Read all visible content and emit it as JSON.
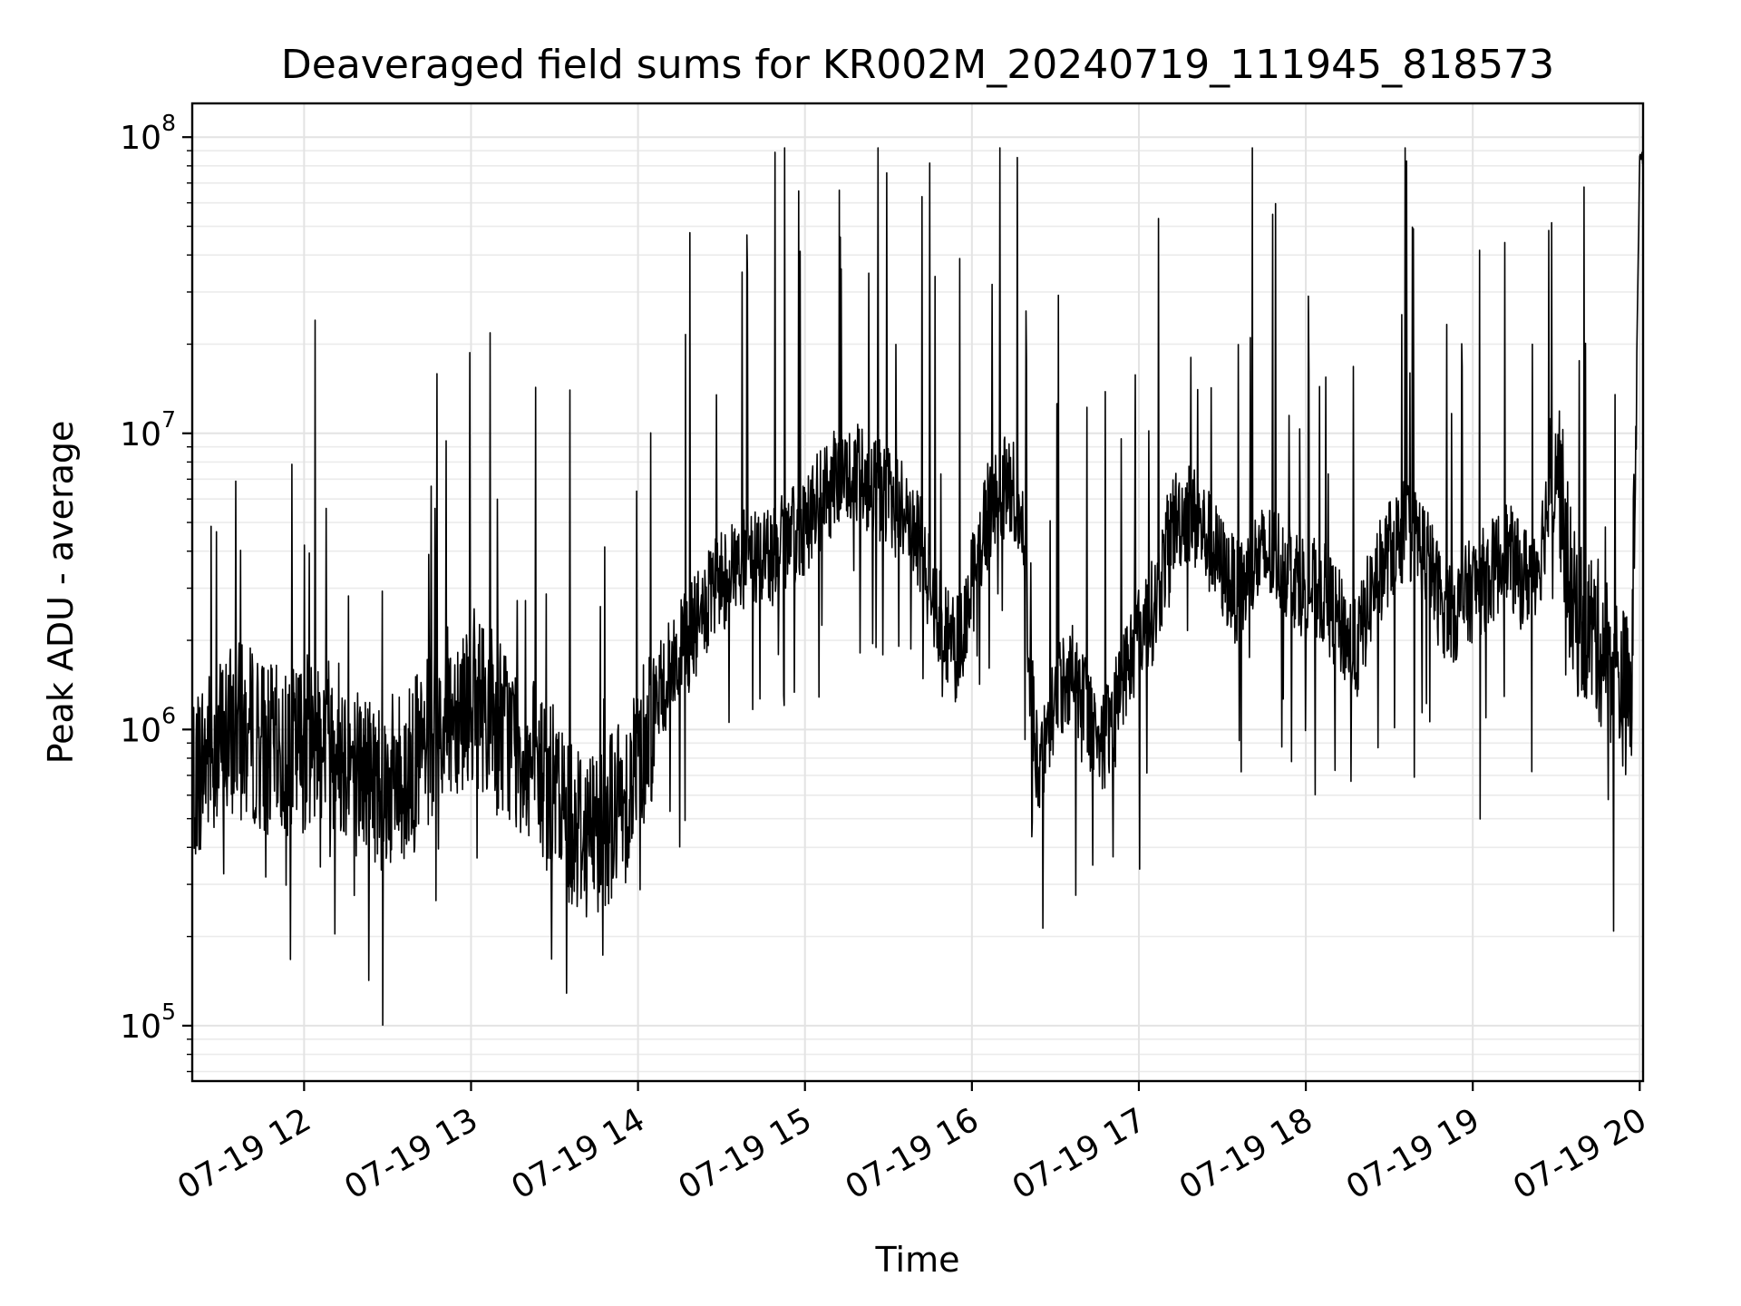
{
  "chart_data": {
    "type": "line",
    "title": "Deaveraged field sums for KR002M_20240719_111945_818573",
    "xlabel": "Time",
    "ylabel": "Peak ADU - average",
    "yscale": "log",
    "ylim": [
      65000,
      130000000
    ],
    "xlim_hours": [
      11.33,
      20.02
    ],
    "grid": true,
    "line_color": "#000000",
    "x_ticks": [
      {
        "hour": 12,
        "label": "07-19 12"
      },
      {
        "hour": 13,
        "label": "07-19 13"
      },
      {
        "hour": 14,
        "label": "07-19 14"
      },
      {
        "hour": 15,
        "label": "07-19 15"
      },
      {
        "hour": 16,
        "label": "07-19 16"
      },
      {
        "hour": 17,
        "label": "07-19 17"
      },
      {
        "hour": 18,
        "label": "07-19 18"
      },
      {
        "hour": 19,
        "label": "07-19 19"
      },
      {
        "hour": 20,
        "label": "07-19 20"
      }
    ],
    "y_ticks": [
      {
        "value": 100000,
        "base": "10",
        "exp": "5"
      },
      {
        "value": 1000000,
        "base": "10",
        "exp": "6"
      },
      {
        "value": 10000000,
        "base": "10",
        "exp": "7"
      },
      {
        "value": 100000000,
        "base": "10",
        "exp": "8"
      }
    ],
    "series": [
      {
        "name": "Peak ADU - average",
        "x_hours": [
          11.33,
          11.4,
          11.5,
          11.6,
          11.7,
          11.8,
          11.9,
          12.0,
          12.1,
          12.2,
          12.3,
          12.4,
          12.5,
          12.6,
          12.7,
          12.8,
          12.9,
          13.0,
          13.1,
          13.2,
          13.3,
          13.4,
          13.5,
          13.6,
          13.7,
          13.8,
          13.9,
          14.0,
          14.1,
          14.2,
          14.3,
          14.4,
          14.5,
          14.6,
          14.7,
          14.8,
          14.9,
          15.0,
          15.1,
          15.2,
          15.3,
          15.4,
          15.5,
          15.6,
          15.7,
          15.8,
          15.9,
          16.0,
          16.1,
          16.2,
          16.3,
          16.35,
          16.4,
          16.45,
          16.5,
          16.6,
          16.7,
          16.8,
          16.9,
          17.0,
          17.1,
          17.2,
          17.3,
          17.4,
          17.5,
          17.6,
          17.7,
          17.8,
          17.9,
          18.0,
          18.1,
          18.2,
          18.3,
          18.4,
          18.5,
          18.6,
          18.7,
          18.8,
          18.9,
          19.0,
          19.1,
          19.2,
          19.3,
          19.4,
          19.5,
          19.6,
          19.7,
          19.8,
          19.9,
          19.95,
          20.0
        ],
        "y": [
          700000,
          800000,
          900000,
          1000000,
          950000,
          850000,
          800000,
          900000,
          1000000,
          900000,
          750000,
          700000,
          650000,
          700000,
          800000,
          1000000,
          1200000,
          1300000,
          1200000,
          1000000,
          850000,
          700000,
          600000,
          500000,
          450000,
          500000,
          550000,
          800000,
          1200000,
          1600000,
          2000000,
          2500000,
          3200000,
          3600000,
          3800000,
          3900000,
          4200000,
          5000000,
          6000000,
          7000000,
          7200000,
          6800000,
          6000000,
          5500000,
          4000000,
          2500000,
          1800000,
          3000000,
          5500000,
          6500000,
          6000000,
          1500000,
          650000,
          900000,
          1300000,
          1600000,
          1100000,
          900000,
          1500000,
          2100000,
          2600000,
          5000000,
          5500000,
          4500000,
          3500000,
          2800000,
          3700000,
          3900000,
          3500000,
          3000000,
          2900000,
          2300000,
          1800000,
          3000000,
          4000000,
          4800000,
          4200000,
          2800000,
          2500000,
          3000000,
          3300000,
          4000000,
          3200000,
          3800000,
          9000000,
          2500000,
          2200000,
          1800000,
          1400000,
          1200000,
          85000000
        ]
      }
    ]
  }
}
